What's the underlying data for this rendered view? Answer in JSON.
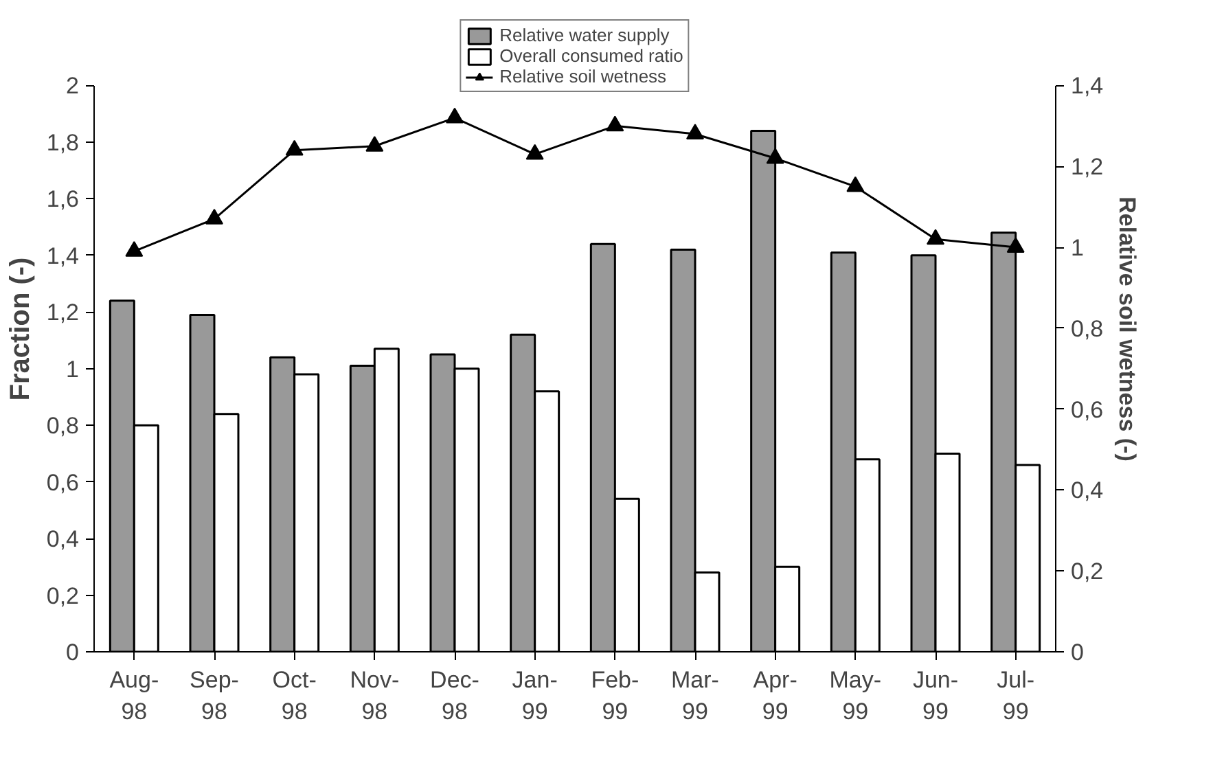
{
  "chart_data": {
    "type": "bar",
    "ylabel": "Fraction (-)",
    "y2label": "Relative soil wetness (-)",
    "categories": [
      "Aug-98",
      "Sep-98",
      "Oct-98",
      "Nov-98",
      "Dec-98",
      "Jan-99",
      "Feb-99",
      "Mar-99",
      "Apr-99",
      "May-99",
      "Jun-99",
      "Jul-99"
    ],
    "series": [
      {
        "name": "Relative water supply",
        "color": "#999999",
        "values": [
          1.24,
          1.19,
          1.04,
          1.01,
          1.05,
          1.12,
          1.44,
          1.42,
          1.84,
          1.41,
          1.4,
          1.48
        ]
      },
      {
        "name": "Overall consumed ratio",
        "color": "#ffffff",
        "values": [
          0.8,
          0.84,
          0.98,
          1.07,
          1.0,
          0.92,
          0.54,
          0.28,
          0.3,
          0.68,
          0.7,
          0.66
        ]
      },
      {
        "name": "Relative soil wetness",
        "type": "line",
        "axis": "y2",
        "color": "#000000",
        "marker": "triangle",
        "values": [
          0.99,
          1.07,
          1.24,
          1.25,
          1.32,
          1.23,
          1.3,
          1.28,
          1.22,
          1.15,
          1.02,
          1.0
        ]
      }
    ],
    "ylim": [
      0,
      2
    ],
    "yticks": [
      0,
      {
        "value": 0.2,
        "label": "0,2"
      },
      {
        "value": 0.4,
        "label": "0,4"
      },
      {
        "value": 0.6,
        "label": "0,6"
      },
      {
        "value": 0.8,
        "label": "0,8"
      },
      1,
      {
        "value": 1.2,
        "label": "1,2"
      },
      {
        "value": 1.4,
        "label": "1,4"
      },
      {
        "value": 1.6,
        "label": "1,6"
      },
      {
        "value": 1.8,
        "label": "1,8"
      },
      2
    ],
    "y2lim": [
      0,
      1.4
    ],
    "y2ticks": [
      0,
      {
        "value": 0.2,
        "label": "0,2"
      },
      {
        "value": 0.4,
        "label": "0,4"
      },
      {
        "value": 0.6,
        "label": "0,6"
      },
      {
        "value": 0.8,
        "label": "0,8"
      },
      1,
      {
        "value": 1.2,
        "label": "1,2"
      },
      {
        "value": 1.4,
        "label": "1,4"
      }
    ],
    "grid": false,
    "legend": "top"
  }
}
